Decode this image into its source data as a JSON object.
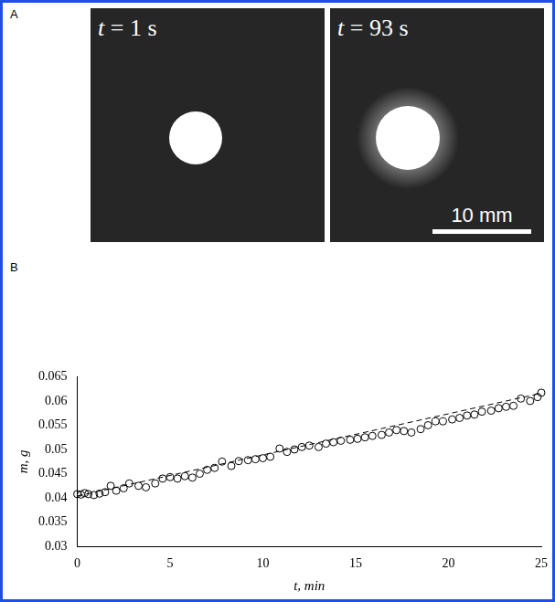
{
  "panel_a": {
    "letter": "A",
    "frames": [
      {
        "label": "t = 1 s"
      },
      {
        "label": "t = 93 s"
      }
    ],
    "scale_bar": "10 mm"
  },
  "panel_b": {
    "letter": "B"
  },
  "chart_data": {
    "type": "scatter",
    "x_label": "t, min",
    "y_label": "m, g",
    "xlim": [
      0,
      25
    ],
    "xticks": [
      0,
      5,
      10,
      15,
      20,
      25
    ],
    "ylim": [
      0.03,
      0.065
    ],
    "yticks": [
      0.03,
      0.035,
      0.04,
      0.045,
      0.05,
      0.055,
      0.06,
      0.065
    ],
    "grid": false,
    "series": [
      {
        "type": "scatter",
        "marker": "circle",
        "color": "#000000",
        "x": [
          0,
          0.2,
          0.4,
          0.6,
          0.9,
          1.2,
          1.5,
          1.8,
          2.1,
          2.5,
          2.8,
          3.3,
          3.7,
          4.2,
          4.6,
          5.0,
          5.4,
          5.8,
          6.2,
          6.6,
          7.0,
          7.4,
          7.8,
          8.3,
          8.7,
          9.2,
          9.6,
          10.0,
          10.4,
          10.9,
          11.3,
          11.7,
          12.1,
          12.5,
          13.0,
          13.4,
          13.8,
          14.2,
          14.7,
          15.1,
          15.5,
          15.9,
          16.4,
          16.8,
          17.2,
          17.6,
          18.0,
          18.5,
          18.9,
          19.3,
          19.7,
          20.2,
          20.6,
          21.0,
          21.4,
          21.8,
          22.3,
          22.7,
          23.1,
          23.5,
          23.9,
          24.4,
          24.8,
          25.0
        ],
        "values": [
          0.0408,
          0.0407,
          0.041,
          0.0408,
          0.0406,
          0.0409,
          0.0412,
          0.0425,
          0.0415,
          0.042,
          0.043,
          0.0425,
          0.0422,
          0.043,
          0.044,
          0.0443,
          0.044,
          0.0445,
          0.0442,
          0.045,
          0.0458,
          0.0462,
          0.0475,
          0.0466,
          0.0476,
          0.0478,
          0.048,
          0.0482,
          0.0485,
          0.0502,
          0.0495,
          0.05,
          0.0505,
          0.0508,
          0.0505,
          0.0512,
          0.0515,
          0.0518,
          0.052,
          0.0522,
          0.0525,
          0.0528,
          0.053,
          0.0535,
          0.054,
          0.0538,
          0.0535,
          0.0542,
          0.055,
          0.0558,
          0.0558,
          0.0562,
          0.0565,
          0.057,
          0.0572,
          0.0578,
          0.058,
          0.0585,
          0.0588,
          0.059,
          0.0605,
          0.06,
          0.0608,
          0.0617
        ]
      },
      {
        "type": "line",
        "line_style": "dashed",
        "color": "#000000",
        "x": [
          0,
          25
        ],
        "values": [
          0.0404,
          0.0616
        ]
      }
    ]
  }
}
